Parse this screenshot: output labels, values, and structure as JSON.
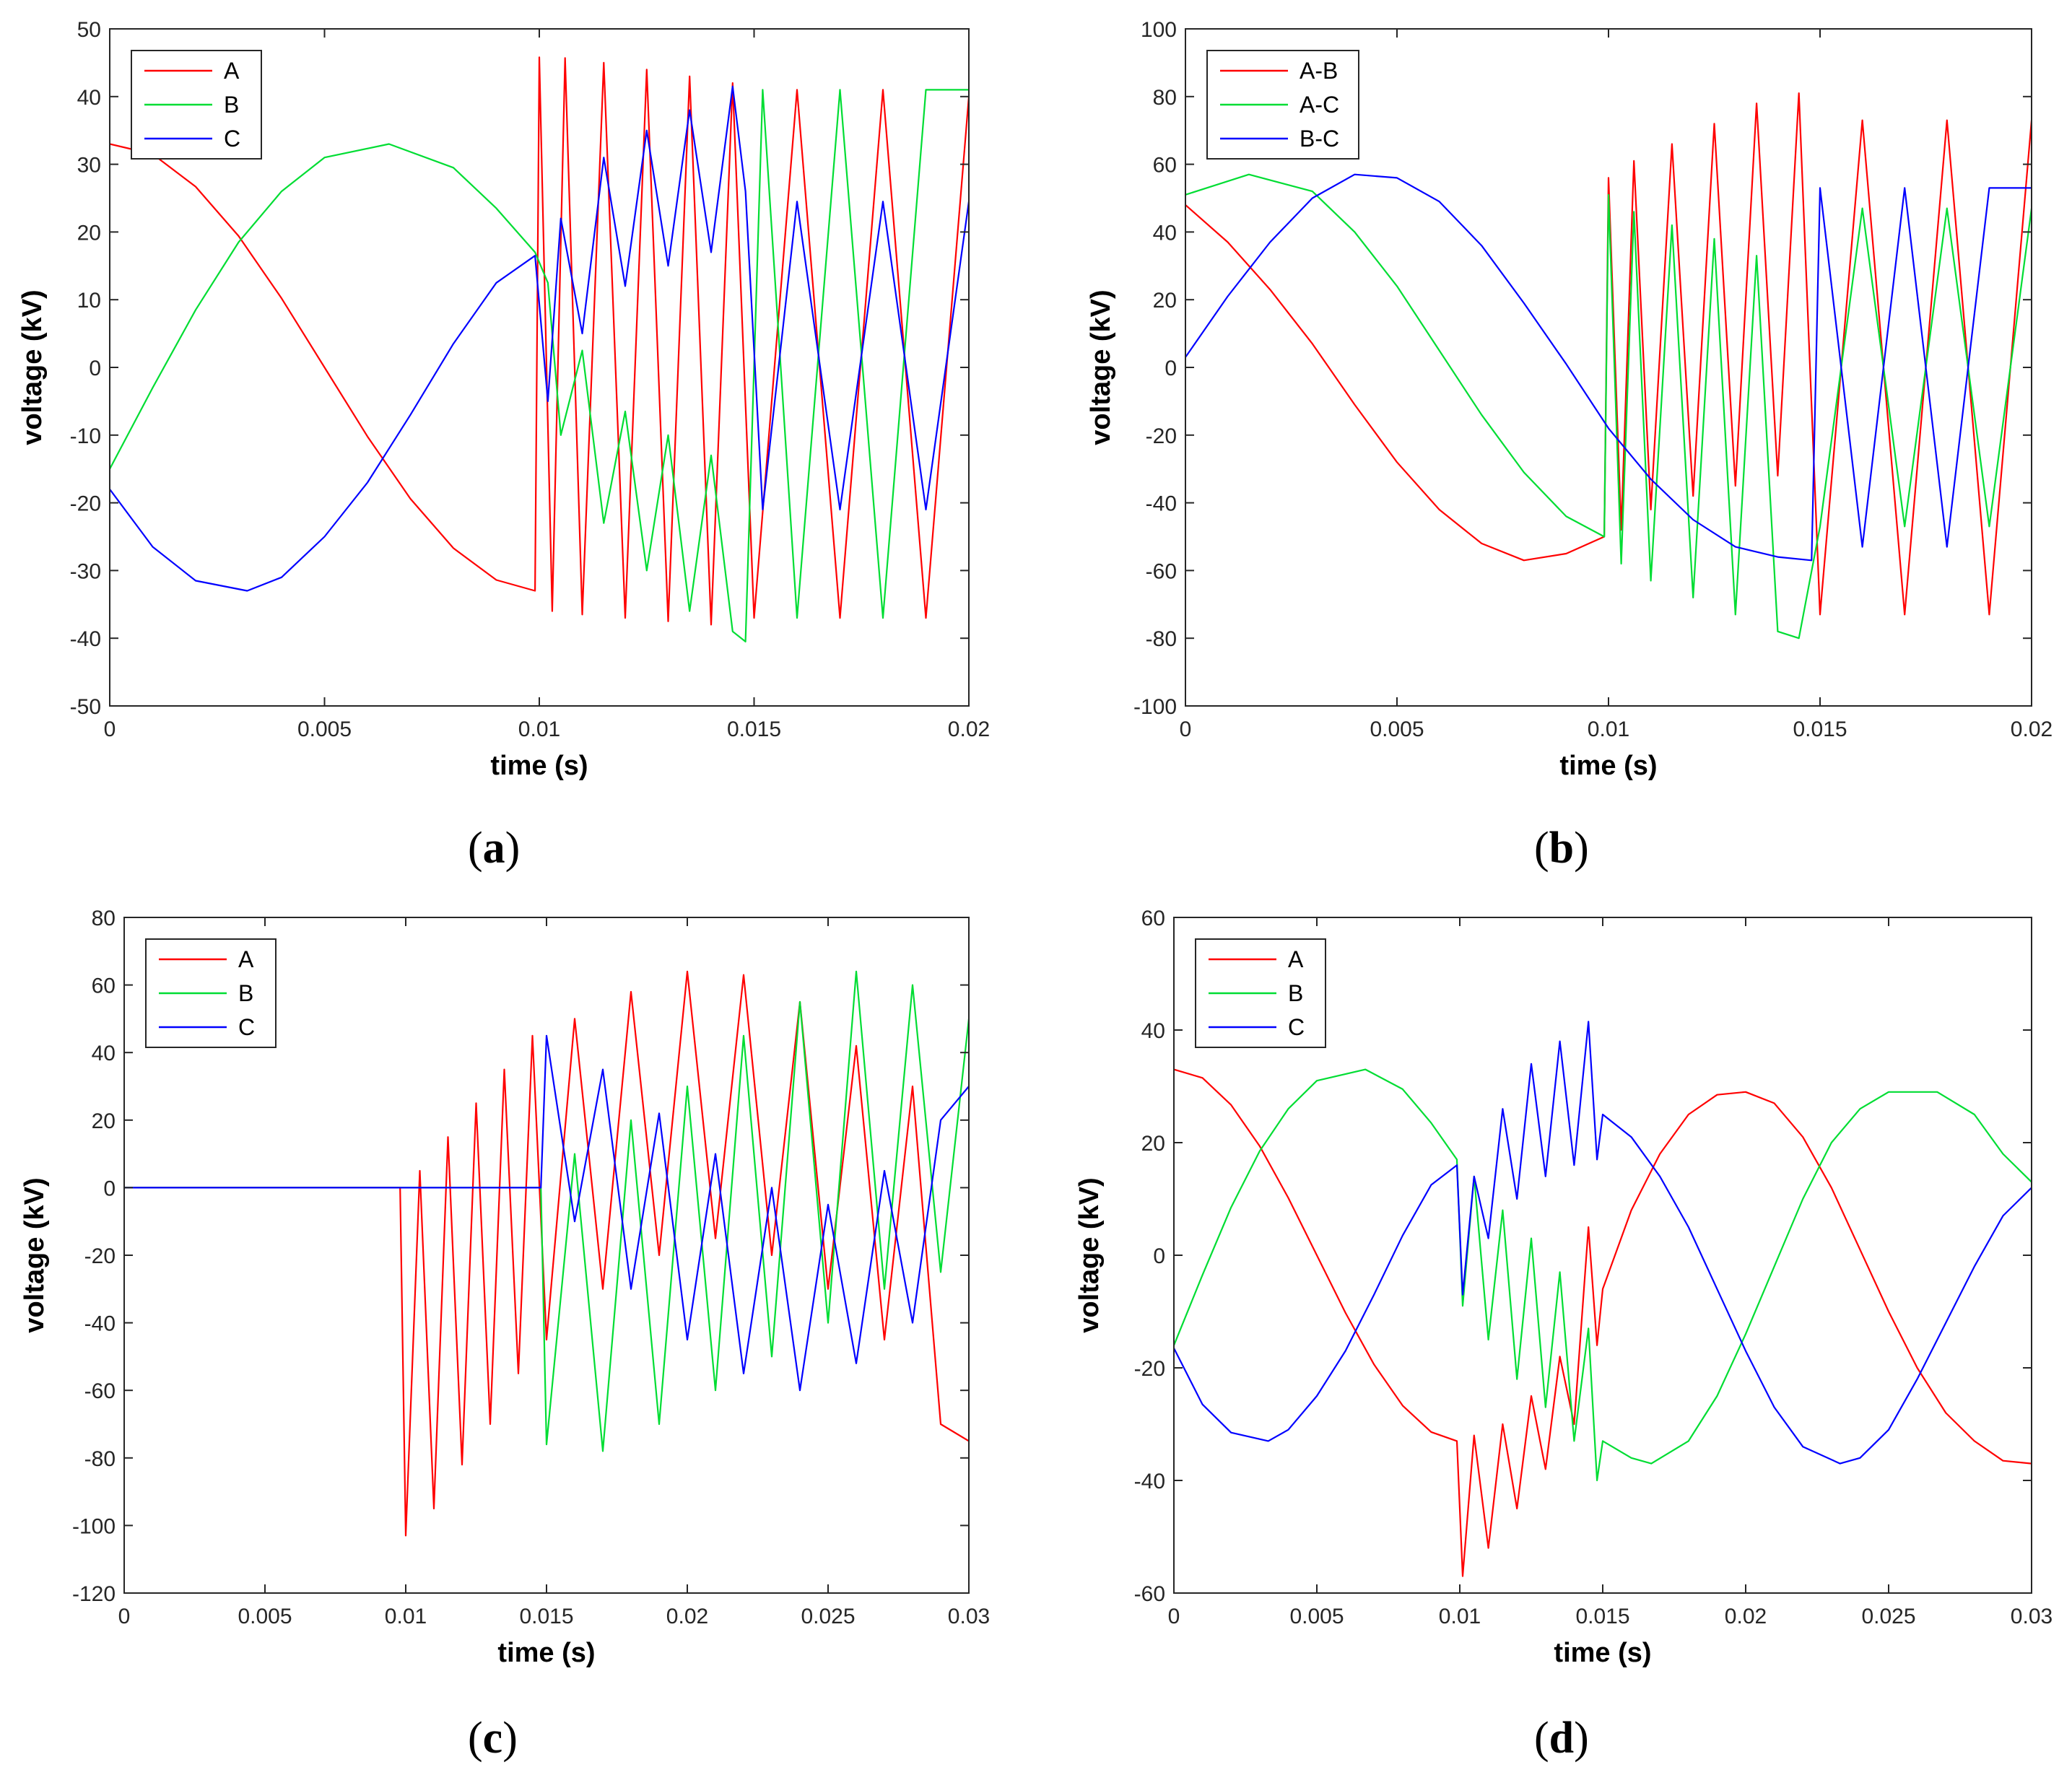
{
  "colors": {
    "A": "#ff0000",
    "B": "#00dd33",
    "C": "#0000ff"
  },
  "chart_data": [
    {
      "type": "line",
      "panel": "a",
      "caption_letter": "a",
      "xlabel": "time (s)",
      "ylabel": "voltage (kV)",
      "xlim": [
        0,
        0.02
      ],
      "ylim": [
        -50,
        50
      ],
      "xticks": [
        0,
        0.005,
        0.01,
        0.015,
        0.02
      ],
      "xtick_labels": [
        "0",
        "0.005",
        "0.01",
        "0.015",
        "0.02"
      ],
      "yticks": [
        -50,
        -40,
        -30,
        -20,
        -10,
        0,
        10,
        20,
        30,
        40,
        50
      ],
      "ytick_labels": [
        "-50",
        "-40",
        "-30",
        "-20",
        "-10",
        "0",
        "10",
        "20",
        "30",
        "40",
        "50"
      ],
      "legend": [
        "A",
        "B",
        "C"
      ],
      "legend_position": "top-left",
      "series": [
        {
          "name": "A",
          "color": "#ff0000",
          "x": [
            0,
            0.001,
            0.002,
            0.003,
            0.004,
            0.005,
            0.006,
            0.007,
            0.008,
            0.009,
            0.0099,
            0.01,
            0.0103,
            0.0106,
            0.011,
            0.0115,
            0.012,
            0.0125,
            0.013,
            0.0135,
            0.014,
            0.0145,
            0.015,
            0.016,
            0.017,
            0.018,
            0.019,
            0.02
          ],
          "y": [
            33,
            31.5,
            26.7,
            19.4,
            10.2,
            0,
            -10.2,
            -19.4,
            -26.7,
            -31.4,
            -33,
            45.8,
            -36,
            45.7,
            -36.5,
            45,
            -37,
            44,
            -37.5,
            43,
            -38,
            42,
            -37,
            41,
            -37,
            41,
            -37,
            40
          ]
        },
        {
          "name": "B",
          "color": "#00dd33",
          "x": [
            0,
            0.001,
            0.002,
            0.003,
            0.004,
            0.005,
            0.0065,
            0.008,
            0.009,
            0.0099,
            0.0102,
            0.0105,
            0.011,
            0.0115,
            0.012,
            0.0125,
            0.013,
            0.0135,
            0.014,
            0.0145,
            0.0148,
            0.0152,
            0.016,
            0.017,
            0.018,
            0.019,
            0.02
          ],
          "y": [
            -15,
            -3,
            8.5,
            18.5,
            26,
            31,
            33,
            29.5,
            23.5,
            17,
            12.5,
            -10,
            2.5,
            -23,
            -6.5,
            -30,
            -10,
            -36,
            -13,
            -39,
            -40.5,
            41,
            -37,
            41,
            -37,
            41,
            41
          ]
        },
        {
          "name": "C",
          "color": "#0000ff",
          "x": [
            0,
            0.001,
            0.002,
            0.0032,
            0.004,
            0.005,
            0.006,
            0.007,
            0.008,
            0.009,
            0.0099,
            0.0102,
            0.0105,
            0.011,
            0.0115,
            0.012,
            0.0125,
            0.013,
            0.0135,
            0.014,
            0.0145,
            0.0148,
            0.0152,
            0.016,
            0.017,
            0.018,
            0.019,
            0.02
          ],
          "y": [
            -18,
            -26.5,
            -31.5,
            -33,
            -31,
            -25,
            -17,
            -7,
            3.5,
            12.5,
            16.5,
            -5,
            22,
            5,
            31,
            12,
            35,
            15,
            38,
            17,
            41.5,
            26,
            -21,
            24.5,
            -21,
            24.5,
            -21,
            24.5
          ]
        }
      ]
    },
    {
      "type": "line",
      "panel": "b",
      "caption_letter": "b",
      "xlabel": "time (s)",
      "ylabel": "voltage (kV)",
      "xlim": [
        0,
        0.02
      ],
      "ylim": [
        -100,
        100
      ],
      "xticks": [
        0,
        0.005,
        0.01,
        0.015,
        0.02
      ],
      "xtick_labels": [
        "0",
        "0.005",
        "0.01",
        "0.015",
        "0.02"
      ],
      "yticks": [
        -100,
        -80,
        -60,
        -40,
        -20,
        0,
        20,
        40,
        60,
        80,
        100
      ],
      "ytick_labels": [
        "-100",
        "-80",
        "-60",
        "-40",
        "-20",
        "0",
        "20",
        "40",
        "60",
        "80",
        "100"
      ],
      "legend": [
        "A-B",
        "A-C",
        "B-C"
      ],
      "legend_position": "top-left",
      "series": [
        {
          "name": "A-B",
          "color": "#ff0000",
          "x": [
            0,
            0.001,
            0.002,
            0.003,
            0.004,
            0.005,
            0.006,
            0.007,
            0.008,
            0.009,
            0.0099,
            0.01,
            0.0103,
            0.0106,
            0.011,
            0.0115,
            0.012,
            0.0125,
            0.013,
            0.0135,
            0.014,
            0.0145,
            0.015,
            0.016,
            0.017,
            0.018,
            0.019,
            0.02
          ],
          "y": [
            48,
            37,
            23,
            7,
            -11,
            -28,
            -42,
            -52,
            -57,
            -55,
            -50,
            56,
            -48,
            61,
            -42,
            66,
            -38,
            72,
            -35,
            78,
            -32,
            81,
            -73,
            73,
            -73,
            73,
            -73,
            73
          ]
        },
        {
          "name": "A-C",
          "color": "#00dd33",
          "x": [
            0,
            0.0015,
            0.003,
            0.004,
            0.005,
            0.006,
            0.007,
            0.008,
            0.009,
            0.0099,
            0.01,
            0.0103,
            0.0106,
            0.011,
            0.0115,
            0.012,
            0.0125,
            0.013,
            0.0135,
            0.014,
            0.0145,
            0.015,
            0.016,
            0.017,
            0.018,
            0.019,
            0.02
          ],
          "y": [
            51,
            57,
            52,
            40,
            24,
            5,
            -14,
            -31,
            -44,
            -50,
            51,
            -58,
            46,
            -63,
            42,
            -68,
            38,
            -73,
            33,
            -78,
            -80,
            -47,
            47,
            -47,
            47,
            -47,
            47
          ]
        },
        {
          "name": "B-C",
          "color": "#0000ff",
          "x": [
            0,
            0.001,
            0.002,
            0.003,
            0.004,
            0.005,
            0.006,
            0.007,
            0.008,
            0.009,
            0.01,
            0.011,
            0.012,
            0.013,
            0.014,
            0.0148,
            0.015,
            0.016,
            0.017,
            0.018,
            0.019,
            0.02
          ],
          "y": [
            3,
            21,
            37,
            50,
            57,
            56,
            49,
            36,
            19,
            1,
            -18,
            -33,
            -45,
            -53,
            -56,
            -57,
            53,
            -53,
            53,
            -53,
            53,
            53
          ]
        }
      ]
    },
    {
      "type": "line",
      "panel": "c",
      "caption_letter": "c",
      "xlabel": "time (s)",
      "ylabel": "voltage (kV)",
      "xlim": [
        0,
        0.03
      ],
      "ylim": [
        -120,
        80
      ],
      "xticks": [
        0,
        0.005,
        0.01,
        0.015,
        0.02,
        0.025,
        0.03
      ],
      "xtick_labels": [
        "0",
        "0.005",
        "0.01",
        "0.015",
        "0.02",
        "0.025",
        "0.03"
      ],
      "yticks": [
        -120,
        -100,
        -80,
        -60,
        -40,
        -20,
        0,
        20,
        40,
        60,
        80
      ],
      "ytick_labels": [
        "-120",
        "-100",
        "-80",
        "-60",
        "-40",
        "-20",
        "0",
        "20",
        "40",
        "60",
        "80"
      ],
      "legend": [
        "A",
        "B",
        "C"
      ],
      "legend_position": "top-left",
      "series": [
        {
          "name": "A",
          "color": "#ff0000",
          "x": [
            0,
            0.0098,
            0.01,
            0.0105,
            0.011,
            0.0115,
            0.012,
            0.0125,
            0.013,
            0.0135,
            0.014,
            0.0145,
            0.015,
            0.016,
            0.017,
            0.018,
            0.019,
            0.02,
            0.021,
            0.022,
            0.023,
            0.024,
            0.025,
            0.026,
            0.027,
            0.028,
            0.029,
            0.03
          ],
          "y": [
            0,
            0,
            -103,
            5,
            -95,
            15,
            -82,
            25,
            -70,
            35,
            -55,
            45,
            -45,
            50,
            -30,
            58,
            -20,
            64,
            -15,
            63,
            -20,
            55,
            -30,
            42,
            -45,
            30,
            -70,
            -75
          ]
        },
        {
          "name": "B",
          "color": "#00dd33",
          "x": [
            0,
            0.0148,
            0.015,
            0.016,
            0.017,
            0.018,
            0.019,
            0.02,
            0.021,
            0.022,
            0.023,
            0.024,
            0.025,
            0.026,
            0.027,
            0.028,
            0.029,
            0.03
          ],
          "y": [
            0,
            0,
            -76,
            10,
            -78,
            20,
            -70,
            30,
            -60,
            45,
            -50,
            55,
            -40,
            64,
            -30,
            60,
            -25,
            50
          ]
        },
        {
          "name": "C",
          "color": "#0000ff",
          "x": [
            0,
            0.0148,
            0.015,
            0.016,
            0.017,
            0.018,
            0.019,
            0.02,
            0.021,
            0.022,
            0.023,
            0.024,
            0.025,
            0.026,
            0.027,
            0.028,
            0.029,
            0.03
          ],
          "y": [
            0,
            0,
            45,
            -10,
            35,
            -30,
            22,
            -45,
            10,
            -55,
            0,
            -60,
            -5,
            -52,
            5,
            -40,
            20,
            30
          ]
        }
      ]
    },
    {
      "type": "line",
      "panel": "d",
      "caption_letter": "d",
      "xlabel": "time (s)",
      "ylabel": "voltage (kV)",
      "xlim": [
        0,
        0.03
      ],
      "ylim": [
        -60,
        60
      ],
      "xticks": [
        0,
        0.005,
        0.01,
        0.015,
        0.02,
        0.025,
        0.03
      ],
      "xtick_labels": [
        "0",
        "0.005",
        "0.01",
        "0.015",
        "0.02",
        "0.025",
        "0.03"
      ],
      "yticks": [
        -60,
        -40,
        -20,
        0,
        20,
        40,
        60
      ],
      "ytick_labels": [
        "-60",
        "-40",
        "-20",
        "0",
        "20",
        "40",
        "60"
      ],
      "legend": [
        "A",
        "B",
        "C"
      ],
      "legend_position": "top-left",
      "series": [
        {
          "name": "A",
          "color": "#ff0000",
          "x": [
            0,
            0.001,
            0.002,
            0.003,
            0.004,
            0.005,
            0.006,
            0.007,
            0.008,
            0.009,
            0.0099,
            0.0101,
            0.0105,
            0.011,
            0.0115,
            0.012,
            0.0125,
            0.013,
            0.0135,
            0.014,
            0.0145,
            0.0148,
            0.015,
            0.016,
            0.017,
            0.018,
            0.019,
            0.02,
            0.021,
            0.022,
            0.023,
            0.024,
            0.025,
            0.026,
            0.027,
            0.028,
            0.029,
            0.03
          ],
          "y": [
            33,
            31.5,
            26.7,
            19.4,
            10.2,
            0,
            -10.2,
            -19.4,
            -26.7,
            -31.4,
            -33,
            -57,
            -32,
            -52,
            -30,
            -45,
            -25,
            -38,
            -18,
            -30,
            5,
            -16,
            -6,
            8,
            18,
            25,
            28.5,
            29,
            27,
            21,
            12,
            1,
            -10,
            -20,
            -28,
            -33,
            -36.5,
            -37
          ]
        },
        {
          "name": "B",
          "color": "#00dd33",
          "x": [
            0,
            0.001,
            0.002,
            0.003,
            0.004,
            0.005,
            0.0067,
            0.008,
            0.009,
            0.0099,
            0.0101,
            0.0105,
            0.011,
            0.0115,
            0.012,
            0.0125,
            0.013,
            0.0135,
            0.014,
            0.0145,
            0.0148,
            0.015,
            0.016,
            0.0167,
            0.018,
            0.019,
            0.02,
            0.021,
            0.022,
            0.023,
            0.024,
            0.025,
            0.0267,
            0.028,
            0.029,
            0.03
          ],
          "y": [
            -16,
            -3.5,
            8.5,
            18.5,
            26,
            31,
            33,
            29.5,
            23.5,
            17,
            -9,
            14,
            -15,
            8,
            -22,
            3,
            -27,
            -3,
            -33,
            -13,
            -40,
            -33,
            -36,
            -37,
            -33,
            -25,
            -14,
            -2,
            10,
            20,
            26,
            29,
            29,
            25,
            18,
            13
          ]
        },
        {
          "name": "C",
          "color": "#0000ff",
          "x": [
            0,
            0.001,
            0.002,
            0.0033,
            0.004,
            0.005,
            0.006,
            0.007,
            0.008,
            0.009,
            0.0099,
            0.0101,
            0.0105,
            0.011,
            0.0115,
            0.012,
            0.0125,
            0.013,
            0.0135,
            0.014,
            0.0145,
            0.0148,
            0.015,
            0.016,
            0.017,
            0.018,
            0.019,
            0.02,
            0.021,
            0.022,
            0.0233,
            0.024,
            0.025,
            0.026,
            0.027,
            0.028,
            0.029,
            0.03
          ],
          "y": [
            -16.5,
            -26.5,
            -31.5,
            -33,
            -31,
            -25,
            -17,
            -7,
            3.5,
            12.5,
            16,
            -7,
            14,
            3,
            26,
            10,
            34,
            14,
            38,
            16,
            41.5,
            17,
            25,
            21,
            14,
            5,
            -6,
            -17,
            -27,
            -34,
            -37,
            -36,
            -31,
            -22,
            -12,
            -2,
            7,
            12
          ]
        }
      ]
    }
  ]
}
